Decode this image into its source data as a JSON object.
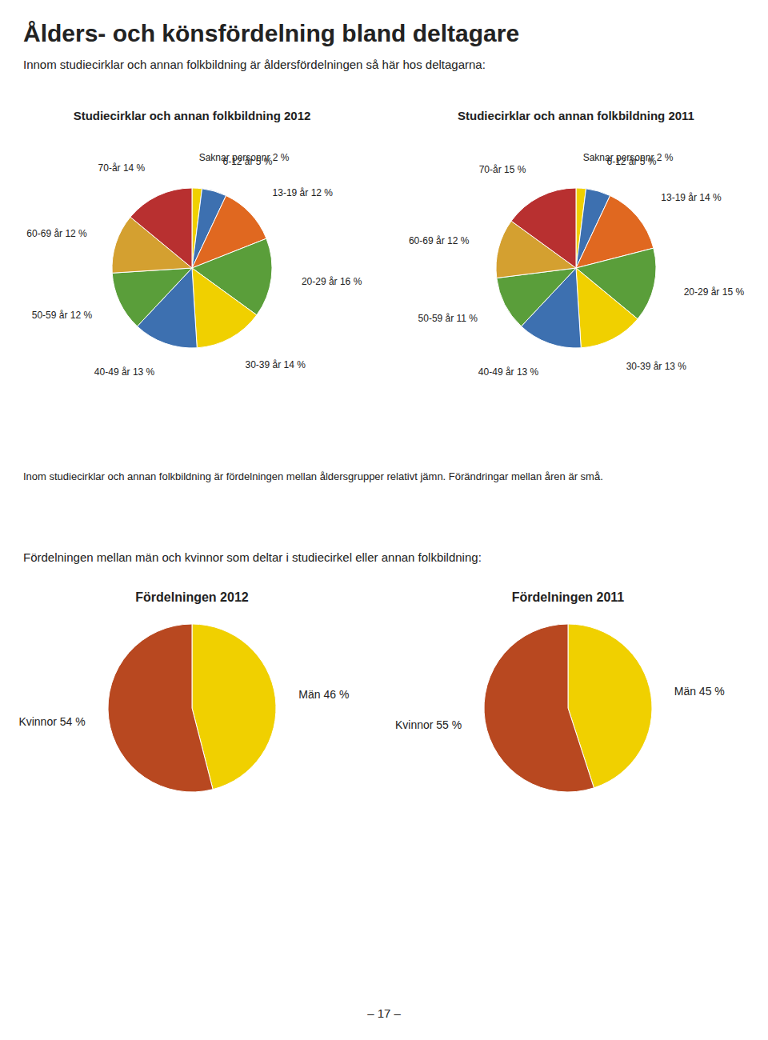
{
  "title": "Ålders- och könsfördelning bland deltagare",
  "subtitle": "Innom studiecirklar och annan folkbildning är åldersfördelningen så här hos deltagarna:",
  "annotations": [
    "Inom studiecirklar och annan folkbildning är fördelningen mellan åldersgrupper relativt jämn. Förändringar mellan åren är små.",
    "Fördelningen mellan män och kvinnor som deltar i studiecirkel eller annan folkbildning:",
    "– 17 –"
  ],
  "chart_data": [
    {
      "type": "pie",
      "title": "Studiecirklar och annan folkbildning 2012",
      "categories": [
        "Saknar personnr",
        "6-12 år",
        "13-19 år",
        "20-29 år",
        "30-39 år",
        "40-49 år",
        "50-59 år",
        "60-69 år",
        "70-år"
      ],
      "values": [
        2,
        5,
        12,
        16,
        14,
        13,
        12,
        12,
        14
      ],
      "value_labels": [
        "2 %",
        "5 %",
        "12 %",
        "16 %",
        "14 %",
        "13 %",
        "12 %",
        "12 %",
        "14 %"
      ],
      "colors": [
        "#f0d000",
        "#3d70b0",
        "#e06820",
        "#5a9e3a",
        "#f0d000",
        "#3d70b0",
        "#5a9e3a",
        "#d4a030",
        "#b83030"
      ],
      "data_labels": true
    },
    {
      "type": "pie",
      "title": "Studiecirklar och annan folkbildning 2011",
      "categories": [
        "Saknar personnr",
        "6-12 år",
        "13-19 år",
        "20-29 år",
        "30-39 år",
        "40-49 år",
        "50-59 år",
        "60-69 år",
        "70-år"
      ],
      "values": [
        2,
        5,
        14,
        15,
        13,
        13,
        11,
        12,
        15
      ],
      "value_labels": [
        "2 %",
        "5 %",
        "14 %",
        "15 %",
        "13 %",
        "13 %",
        "11 %",
        "12 %",
        "15 %"
      ],
      "colors": [
        "#f0d000",
        "#3d70b0",
        "#e06820",
        "#5a9e3a",
        "#f0d000",
        "#3d70b0",
        "#5a9e3a",
        "#d4a030",
        "#b83030"
      ],
      "data_labels": true
    },
    {
      "type": "pie",
      "title": "Fördelningen 2012",
      "categories": [
        "Män",
        "Kvinnor"
      ],
      "values": [
        46,
        54
      ],
      "value_labels": [
        "46 %",
        "54 %"
      ],
      "colors": [
        "#f0d000",
        "#b84820"
      ],
      "data_labels": true
    },
    {
      "type": "pie",
      "title": "Fördelningen 2011",
      "categories": [
        "Män",
        "Kvinnor"
      ],
      "values": [
        45,
        55
      ],
      "value_labels": [
        "45 %",
        "55 %"
      ],
      "colors": [
        "#f0d000",
        "#b84820"
      ],
      "data_labels": true
    }
  ]
}
